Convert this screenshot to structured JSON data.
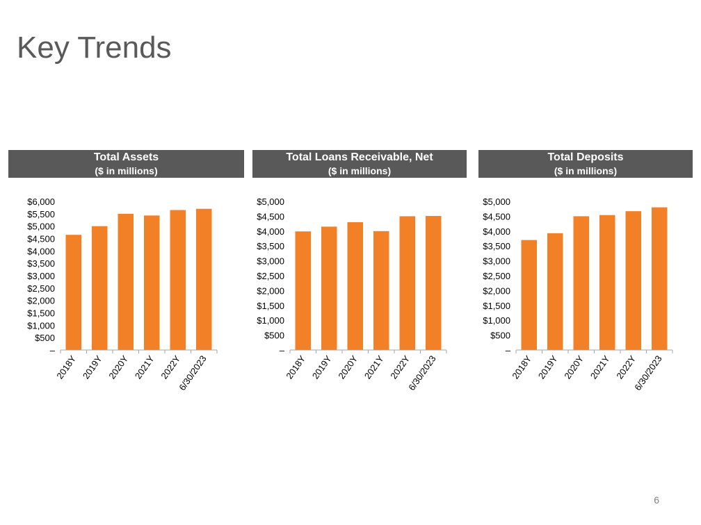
{
  "page": {
    "title": "Key Trends",
    "page_number": "6"
  },
  "colors": {
    "bar": "#F28026",
    "header_bg": "#595959",
    "axis": "#A6A6A6",
    "text": "#000000"
  },
  "chart_data": [
    {
      "type": "bar",
      "title": "Total Assets",
      "subtitle": "($ in millions)",
      "categories": [
        "2018Y",
        "2019Y",
        "2020Y",
        "2021Y",
        "2022Y",
        "6/30/2023"
      ],
      "values": [
        4650,
        5000,
        5500,
        5430,
        5650,
        5700
      ],
      "ylim": [
        0,
        6000
      ],
      "yticks": [
        0,
        500,
        1000,
        1500,
        2000,
        2500,
        3000,
        3500,
        4000,
        4500,
        5000,
        5500,
        6000
      ],
      "ytick_labels": [
        "–",
        "$500",
        "$1,000",
        "$1,500",
        "$2,000",
        "$2,500",
        "$3,000",
        "$3,500",
        "$4,000",
        "$4,500",
        "$5,000",
        "$5,500",
        "$6,000"
      ],
      "grid": false,
      "legend": "none"
    },
    {
      "type": "bar",
      "title": "Total Loans Receivable, Net",
      "subtitle": "($ in millions)",
      "categories": [
        "2018Y",
        "2019Y",
        "2020Y",
        "2021Y",
        "2022Y",
        "6/30/2023"
      ],
      "values": [
        3990,
        4150,
        4300,
        4000,
        4500,
        4510
      ],
      "ylim": [
        0,
        5000
      ],
      "yticks": [
        0,
        500,
        1000,
        1500,
        2000,
        2500,
        3000,
        3500,
        4000,
        4500,
        5000
      ],
      "ytick_labels": [
        "–",
        "$500",
        "$1,000",
        "$1,500",
        "$2,000",
        "$2,500",
        "$3,000",
        "$3,500",
        "$4,000",
        "$4,500",
        "$5,000"
      ],
      "grid": false,
      "legend": "none"
    },
    {
      "type": "bar",
      "title": "Total Deposits",
      "subtitle": "($ in millions)",
      "categories": [
        "2018Y",
        "2019Y",
        "2020Y",
        "2021Y",
        "2022Y",
        "6/30/2023"
      ],
      "values": [
        3700,
        3930,
        4500,
        4540,
        4670,
        4800
      ],
      "ylim": [
        0,
        5000
      ],
      "yticks": [
        0,
        500,
        1000,
        1500,
        2000,
        2500,
        3000,
        3500,
        4000,
        4500,
        5000
      ],
      "ytick_labels": [
        "–",
        "$500",
        "$1,000",
        "$1,500",
        "$2,000",
        "$2,500",
        "$3,000",
        "$3,500",
        "$4,000",
        "$4,500",
        "$5,000"
      ],
      "grid": false,
      "legend": "none"
    }
  ]
}
